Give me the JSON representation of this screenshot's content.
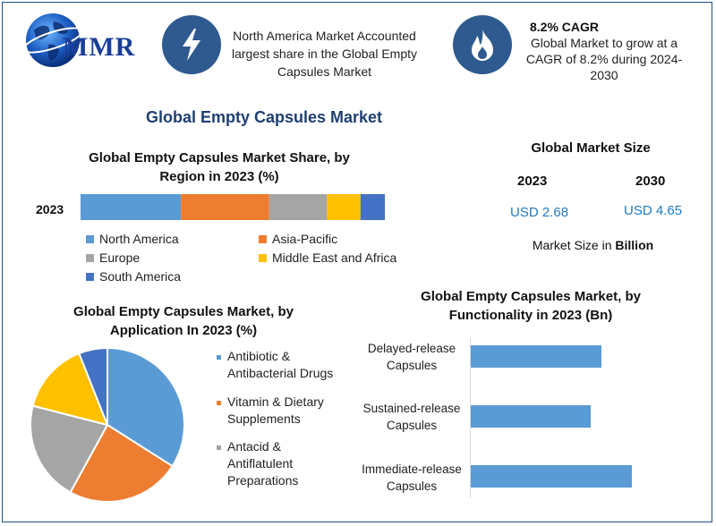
{
  "logo": {
    "text": "MMR"
  },
  "header": {
    "north_america": {
      "icon": "lightning-icon",
      "text": "North America Market Accounted largest share in the Global Empty Capsules Market"
    },
    "cagr": {
      "icon": "flame-icon",
      "title": "8.2% CAGR",
      "text": "Global Market to grow at a CAGR of 8.2% during 2024-2030"
    }
  },
  "main_title": "Global Empty Capsules Market",
  "market_size": {
    "title": "Global Market Size",
    "year_a": "2023",
    "year_b": "2030",
    "value_a": "USD 2.68",
    "value_b": "USD 4.65",
    "note_prefix": "Market Size in ",
    "note_unit": "Billion",
    "value_color": "#1f7ac4"
  },
  "chart_data": [
    {
      "type": "bar",
      "stacked": true,
      "title": "Global Empty Capsules Market Share, by Region in 2023 (%)",
      "categories": [
        "2023"
      ],
      "series": [
        {
          "name": "North America",
          "values": [
            33
          ],
          "color": "#5b9bd5"
        },
        {
          "name": "Asia-Pacific",
          "values": [
            29
          ],
          "color": "#ed7d31"
        },
        {
          "name": "Europe",
          "values": [
            19
          ],
          "color": "#a5a5a5"
        },
        {
          "name": "Middle East and Africa",
          "values": [
            11
          ],
          "color": "#ffc000"
        },
        {
          "name": "South America",
          "values": [
            8
          ],
          "color": "#4472c4"
        }
      ],
      "legend": "bottom"
    },
    {
      "type": "pie",
      "title": "Global Empty Capsules Market, by Application In 2023 (%)",
      "slices": [
        {
          "name": "Antibiotic & Antibacterial Drugs",
          "value": 34,
          "color": "#5b9bd5"
        },
        {
          "name": "Vitamin & Dietary Supplements",
          "value": 24,
          "color": "#ed7d31"
        },
        {
          "name": "Antacid & Antiflatulent Preparations",
          "value": 21,
          "color": "#a5a5a5"
        },
        {
          "name": "",
          "value": 15,
          "color": "#ffc000"
        },
        {
          "name": "",
          "value": 6,
          "color": "#4472c4"
        }
      ],
      "legend": "right"
    },
    {
      "type": "bar",
      "orientation": "horizontal",
      "title": "Global Empty Capsules Market, by Functionality in 2023 (Bn)",
      "categories": [
        "Delayed-release Capsules",
        "Sustained-release Capsules",
        "Immediate-release Capsules"
      ],
      "values": [
        0.82,
        0.75,
        1.01
      ],
      "color": "#5b9bd5"
    }
  ]
}
